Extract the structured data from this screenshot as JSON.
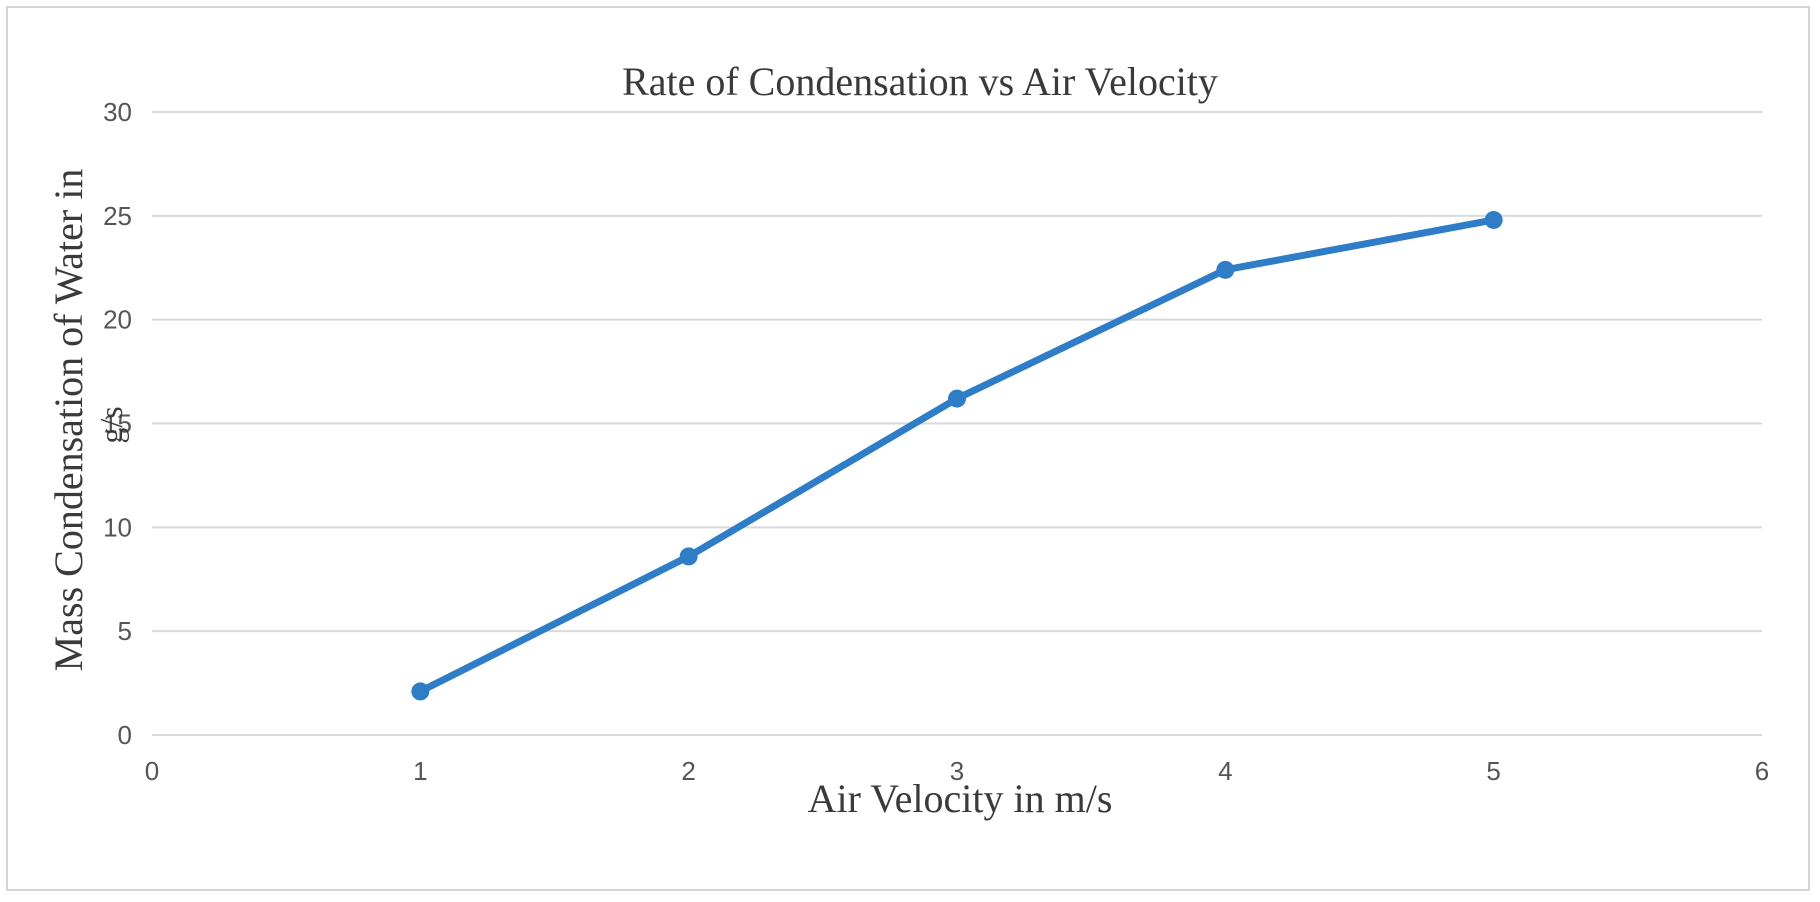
{
  "chart_data": {
    "type": "line",
    "title": "Rate of Condensation vs Air Velocity",
    "xlabel": "Air Velocity in m/s",
    "ylabel": "Mass Condensation of Water in",
    "ylabel_unit": "g/s",
    "xlim": [
      0,
      6
    ],
    "ylim": [
      0,
      30
    ],
    "x_ticks": [
      "0",
      "1",
      "2",
      "3",
      "4",
      "5",
      "6"
    ],
    "y_ticks": [
      "0",
      "5",
      "10",
      "15",
      "20",
      "25",
      "30"
    ],
    "grid": "horizontal",
    "legend": "none",
    "series": [
      {
        "name": "Mass Condensation",
        "color": "#2e7dc6",
        "x": [
          1,
          2,
          3,
          4,
          5
        ],
        "y": [
          2.1,
          8.6,
          16.2,
          22.4,
          24.8
        ]
      }
    ]
  }
}
